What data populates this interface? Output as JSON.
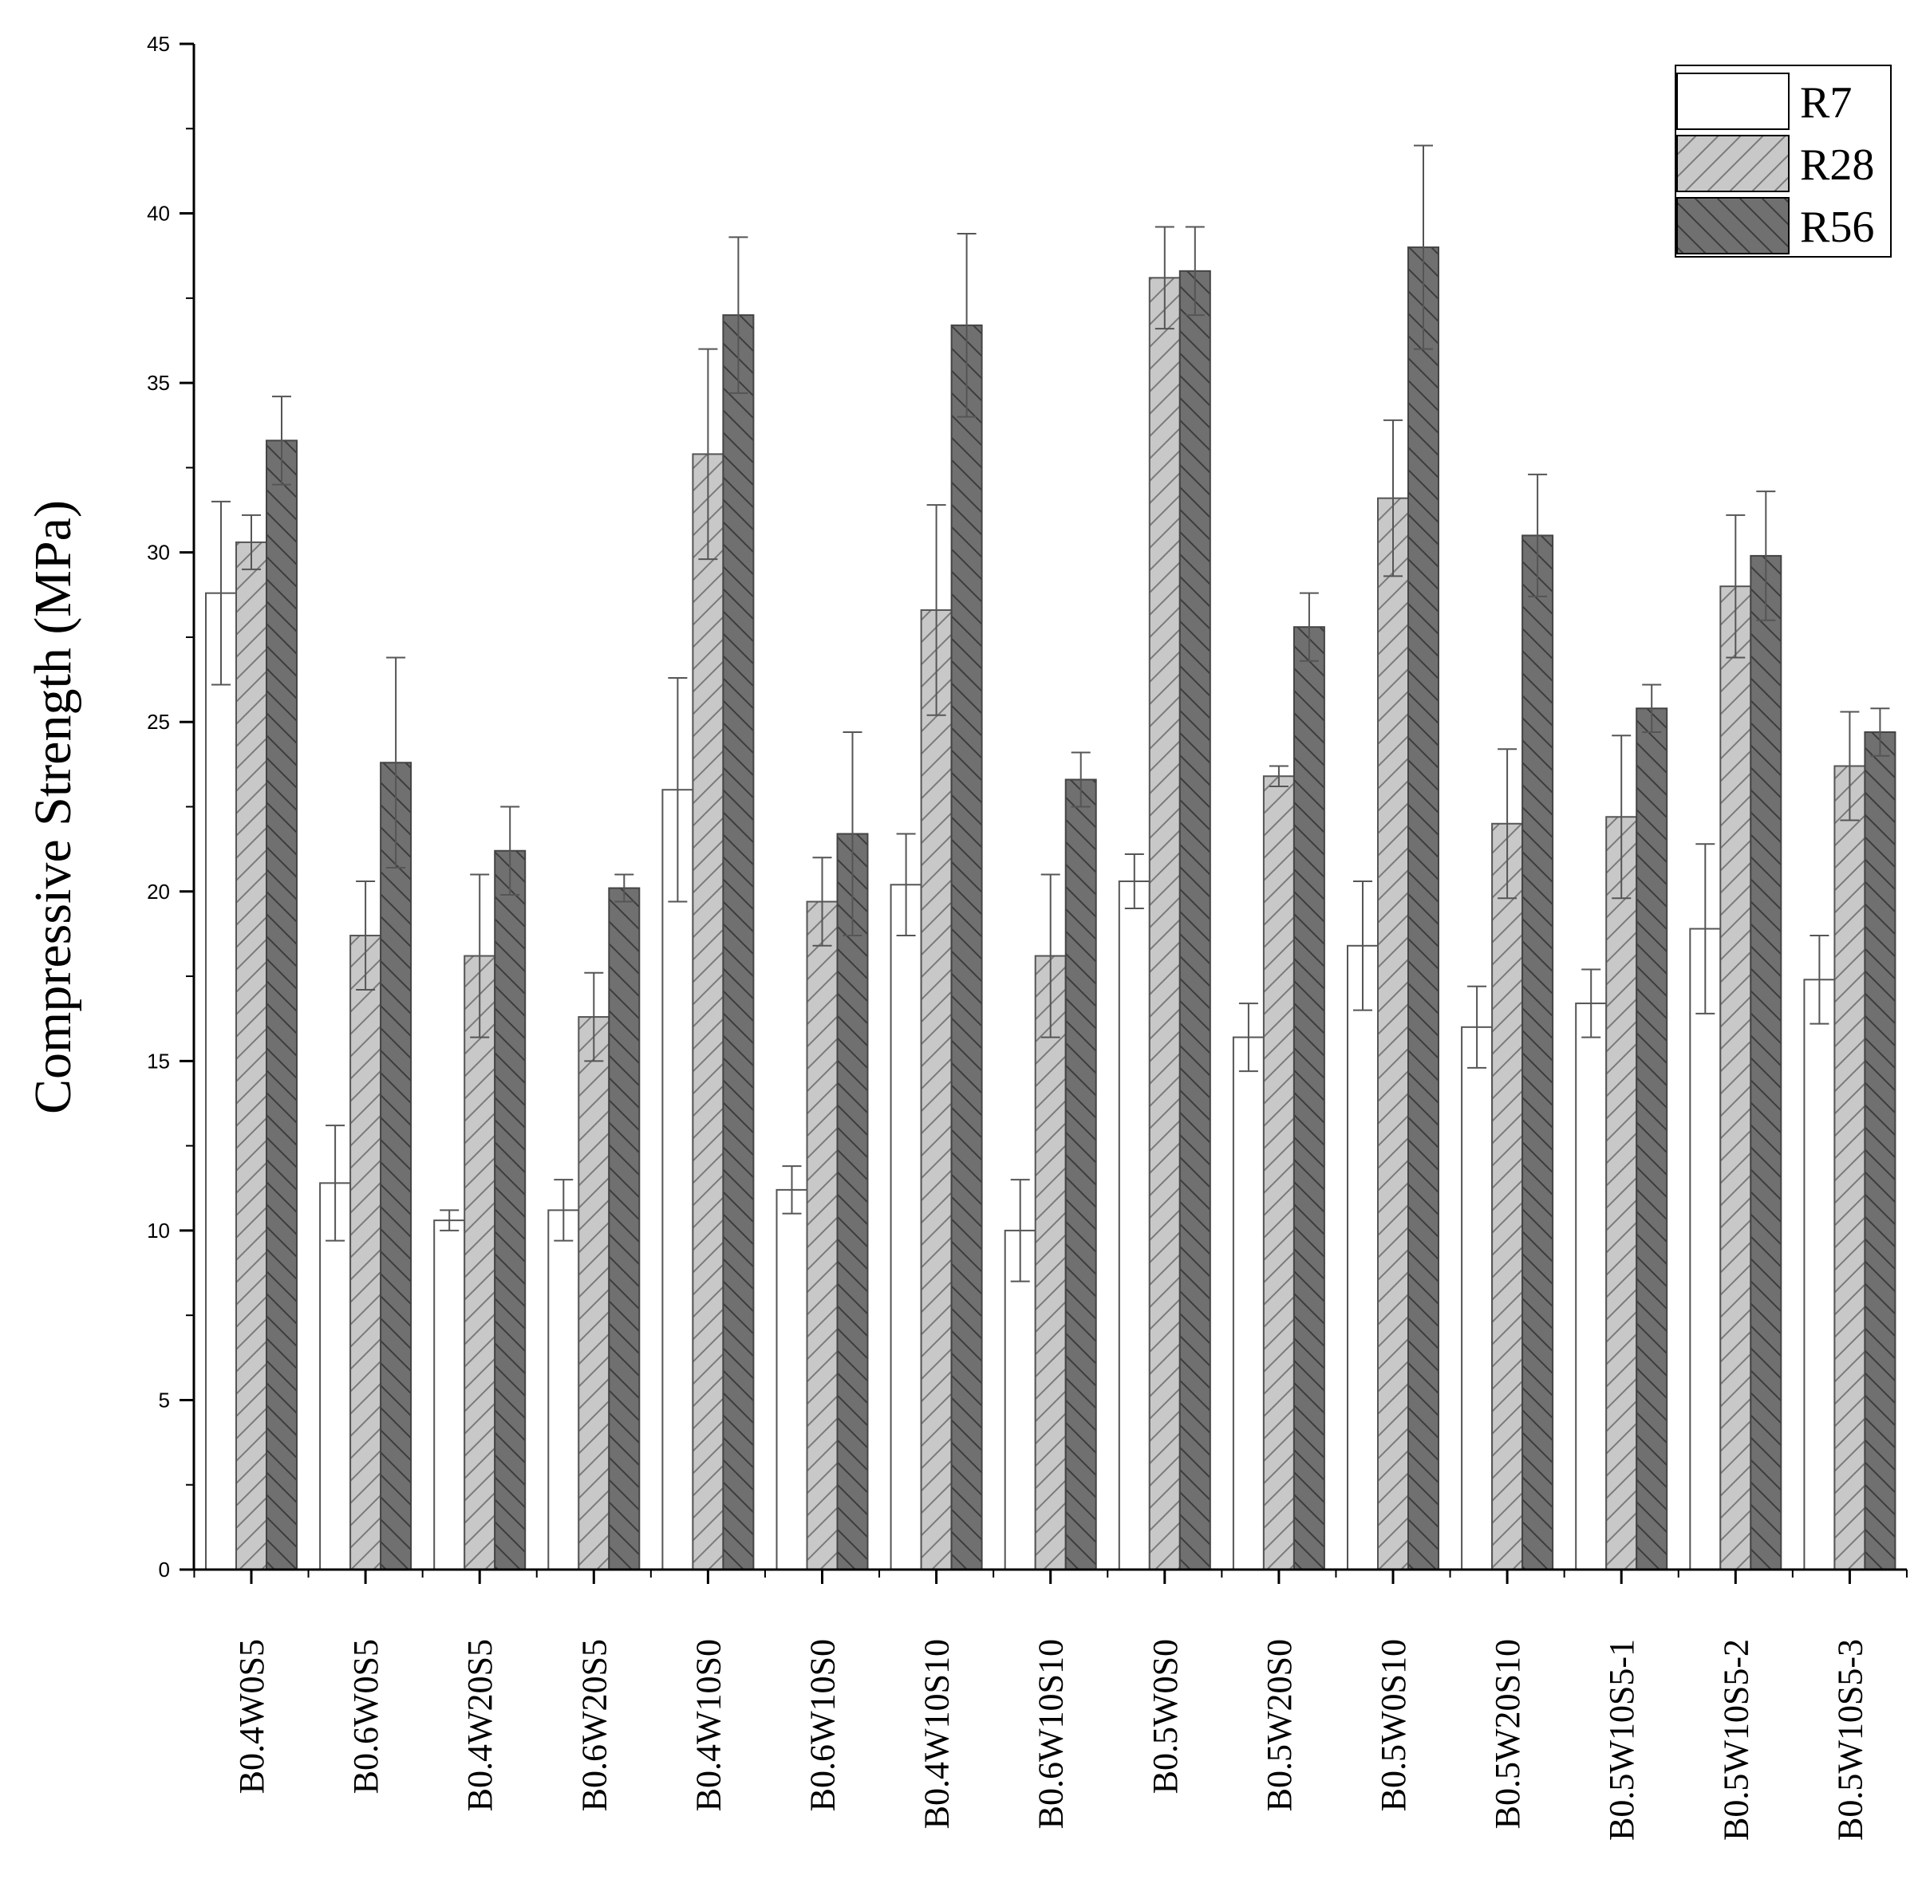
{
  "chart_data": {
    "type": "bar",
    "ylabel": "Compressive Strength (MPa)",
    "xlabel": "",
    "ylim": [
      0,
      45
    ],
    "yticks": [
      0,
      5,
      10,
      15,
      20,
      25,
      30,
      35,
      40,
      45
    ],
    "legend_position": "top-right",
    "categories": [
      "B0.4W0S5",
      "B0.6W0S5",
      "B0.4W20S5",
      "B0.6W20S5",
      "B0.4W10S0",
      "B0.6W10S0",
      "B0.4W10S10",
      "B0.6W10S10",
      "B0.5W0S0",
      "B0.5W20S0",
      "B0.5W0S10",
      "B0.5W20S10",
      "B0.5W10S5-1",
      "B0.5W10S5-2",
      "B0.5W10S5-3"
    ],
    "series": [
      {
        "name": "R7",
        "color": "#ffffff",
        "pattern": "none",
        "values": [
          28.8,
          11.4,
          10.3,
          10.6,
          23.0,
          11.2,
          20.2,
          10.0,
          20.3,
          15.7,
          18.4,
          16.0,
          16.7,
          18.9,
          17.4
        ],
        "errors": [
          2.7,
          1.7,
          0.3,
          0.9,
          3.3,
          0.7,
          1.5,
          1.5,
          0.8,
          1.0,
          1.9,
          1.2,
          1.0,
          2.5,
          1.3
        ]
      },
      {
        "name": "R28",
        "color": "#c8c8c8",
        "pattern": "forward-diagonal",
        "values": [
          30.3,
          18.7,
          18.1,
          16.3,
          32.9,
          19.7,
          28.3,
          18.1,
          38.1,
          23.4,
          31.6,
          22.0,
          22.2,
          29.0,
          23.7
        ],
        "errors": [
          0.8,
          1.6,
          2.4,
          1.3,
          3.1,
          1.3,
          3.1,
          2.4,
          1.5,
          0.3,
          2.3,
          2.2,
          2.4,
          2.1,
          1.6
        ]
      },
      {
        "name": "R56",
        "color": "#707070",
        "pattern": "back-diagonal",
        "values": [
          33.3,
          23.8,
          21.2,
          20.1,
          37.0,
          21.7,
          36.7,
          23.3,
          38.3,
          27.8,
          39.0,
          30.5,
          25.4,
          29.9,
          24.7
        ],
        "errors": [
          1.3,
          3.1,
          1.3,
          0.4,
          2.3,
          3.0,
          2.7,
          0.8,
          1.3,
          1.0,
          3.0,
          1.8,
          0.7,
          1.9,
          0.7
        ]
      }
    ]
  }
}
